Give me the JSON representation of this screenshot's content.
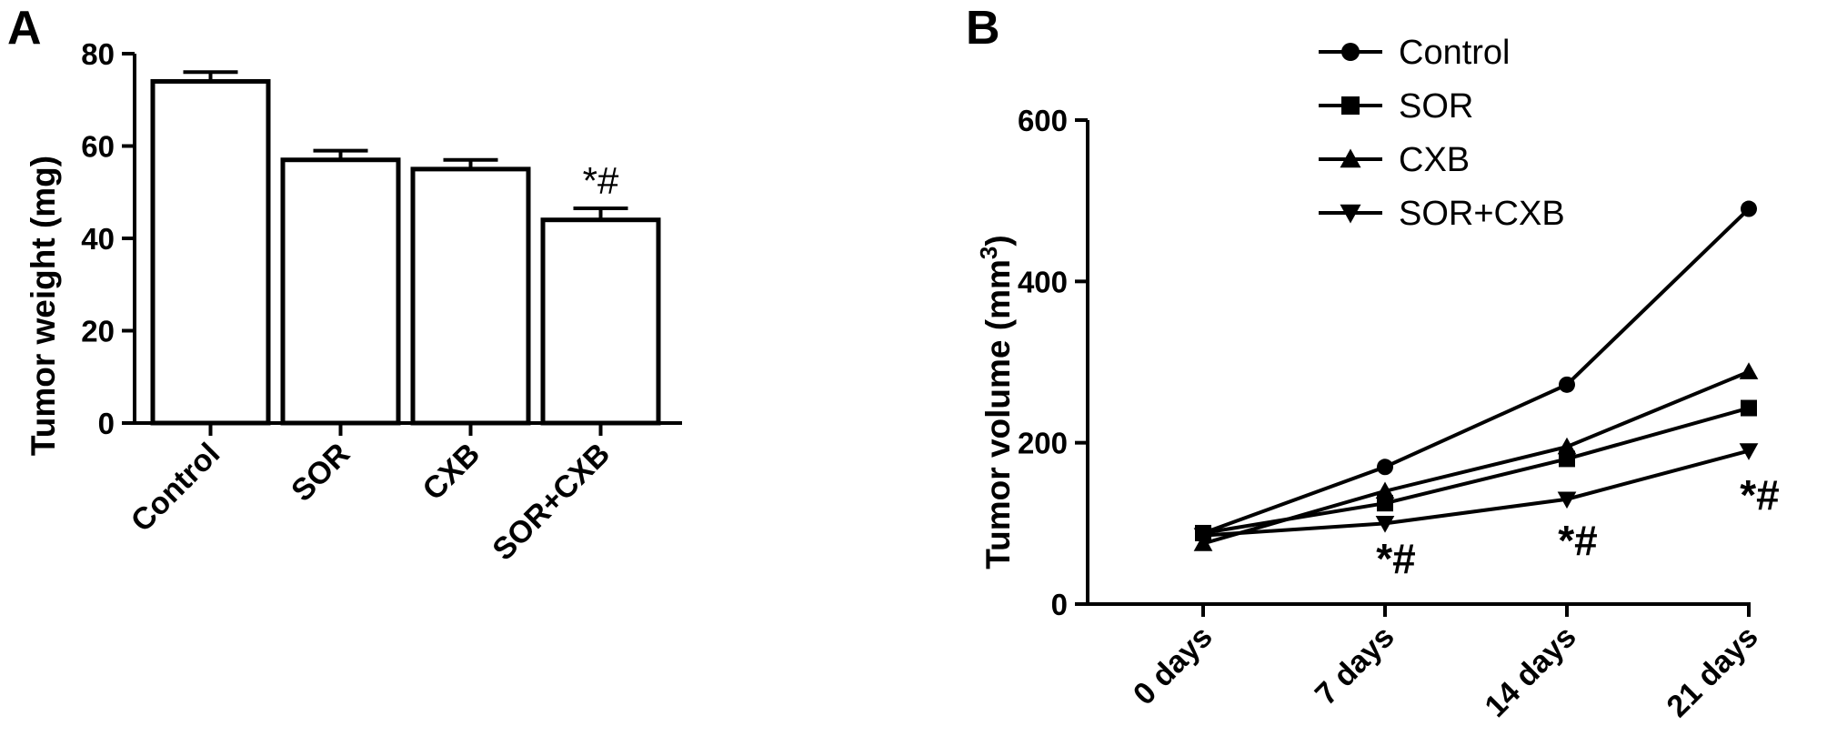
{
  "chart_data": [
    {
      "panel": "A",
      "type": "bar",
      "title": "",
      "ylabel": "Tumor weight (mg)",
      "xlabel": "",
      "ylim": [
        0,
        80
      ],
      "yticks": [
        "0",
        "20",
        "40",
        "60",
        "80"
      ],
      "categories": [
        "Control",
        "SOR",
        "CXB",
        "SOR+CXB"
      ],
      "values": [
        74,
        57,
        55,
        44
      ],
      "errors": [
        2,
        2,
        2,
        2.5
      ],
      "annotations": [
        {
          "category": "SOR+CXB",
          "text": "*#"
        }
      ],
      "grid": false,
      "colors": {
        "bar_fill": "#ffffff",
        "bar_stroke": "#000000"
      }
    },
    {
      "panel": "B",
      "type": "line",
      "title": "",
      "ylabel": "Tumor volume (mm",
      "ylabel_sup": "3",
      "ylabel_close": ")",
      "xlabel": "",
      "ylim": [
        0,
        600
      ],
      "yticks": [
        "0",
        "200",
        "400",
        "600"
      ],
      "x": [
        "0 days",
        "7 days",
        "14 days",
        "21 days"
      ],
      "series": [
        {
          "name": "Control",
          "marker": "circle",
          "values": [
            88,
            170,
            272,
            490
          ]
        },
        {
          "name": "SOR",
          "marker": "square",
          "values": [
            88,
            125,
            180,
            243
          ]
        },
        {
          "name": "CXB",
          "marker": "triangle-up",
          "values": [
            75,
            140,
            195,
            288
          ]
        },
        {
          "name": "SOR+CXB",
          "marker": "triangle-down",
          "values": [
            85,
            100,
            130,
            190
          ]
        }
      ],
      "annotations": [
        {
          "x": "7 days",
          "text": "*#"
        },
        {
          "x": "14 days",
          "text": "*#"
        },
        {
          "x": "21 days",
          "text": "*#"
        }
      ],
      "legend": "top-right",
      "grid": false
    }
  ]
}
